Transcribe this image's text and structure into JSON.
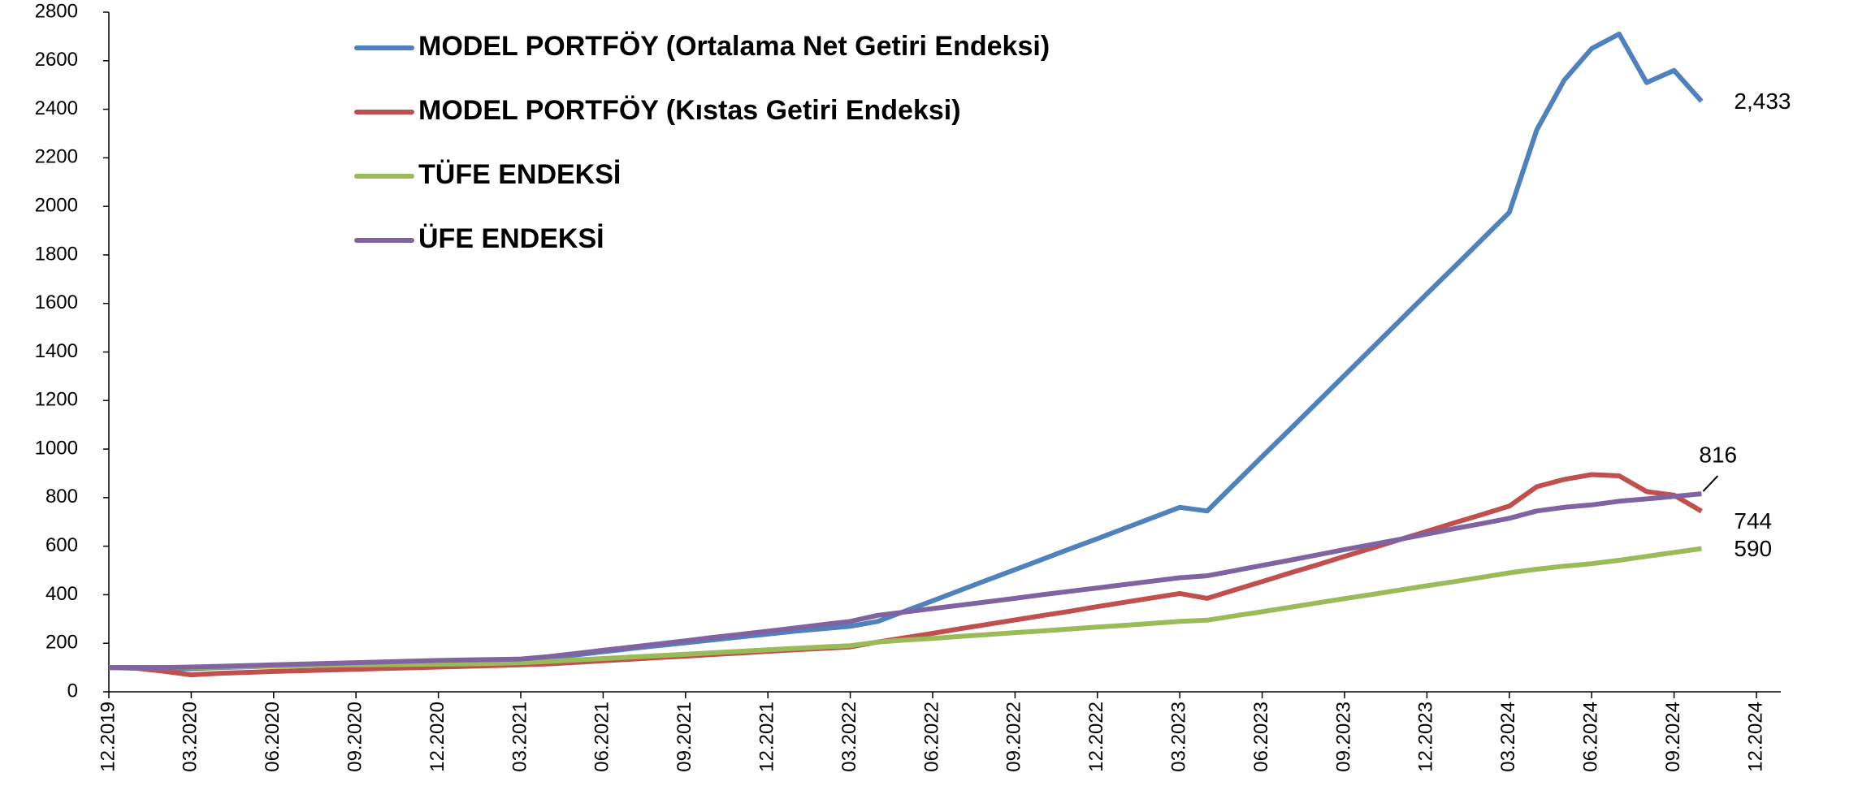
{
  "chart_data": {
    "type": "line",
    "categories": [
      "12.2019",
      null,
      null,
      "03.2020",
      null,
      null,
      "06.2020",
      null,
      null,
      "09.2020",
      null,
      null,
      "12.2020",
      null,
      null,
      "03.2021",
      null,
      null,
      "06.2021",
      null,
      null,
      "09.2021",
      null,
      null,
      "12.2021",
      null,
      null,
      "03.2022",
      null,
      null,
      "06.2022",
      null,
      null,
      "09.2022",
      null,
      null,
      "12.2022",
      null,
      null,
      "03.2023",
      null,
      null,
      "06.2023",
      null,
      null,
      "09.2023",
      null,
      null,
      "12.2023",
      null,
      null,
      "03.2024",
      null,
      null,
      "06.2024",
      null,
      null,
      "09.2024",
      null,
      null,
      "12.2024"
    ],
    "series": [
      {
        "name": "MODEL PORTFÖY (Ortalama Net Getiri Endeksi)",
        "color": "#4f81bd",
        "values": [
          100,
          100,
          95,
          95,
          100,
          103,
          106,
          108,
          110,
          113,
          116,
          118,
          120,
          123,
          126,
          130,
          140,
          152,
          165,
          178,
          190,
          202,
          214,
          226,
          238,
          250,
          260,
          270,
          290,
          333,
          375,
          418,
          461,
          503,
          546,
          589,
          631,
          674,
          717,
          760,
          745,
          857,
          969,
          1080,
          1192,
          1304,
          1416,
          1528,
          1640,
          1751,
          1863,
          1975,
          2315,
          2520,
          2650,
          2710,
          2510,
          2560,
          2433,
          null,
          null
        ],
        "value_labels": [
          null,
          null,
          null,
          null,
          null,
          null,
          null,
          null,
          null,
          null,
          null,
          null,
          null,
          null,
          null,
          null,
          null,
          null,
          null,
          null,
          null,
          null,
          null,
          null,
          null,
          null,
          null,
          null,
          null,
          null,
          null,
          null,
          null,
          null,
          null,
          null,
          null,
          null,
          null,
          null,
          null,
          null,
          null,
          null,
          null,
          null,
          null,
          null,
          null,
          null,
          null,
          null,
          null,
          null,
          null,
          null,
          null,
          null,
          "2,433",
          null,
          null
        ]
      },
      {
        "name": "MODEL PORTFÖY (Kıstas Getiri Endeksi)",
        "color": "#c0504d",
        "values": [
          100,
          97,
          85,
          70,
          76,
          80,
          84,
          87,
          90,
          93,
          96,
          99,
          102,
          105,
          108,
          111,
          115,
          121,
          128,
          134,
          141,
          147,
          154,
          160,
          167,
          173,
          179,
          185,
          205,
          223,
          241,
          260,
          278,
          296,
          314,
          332,
          351,
          369,
          387,
          405,
          385,
          420,
          454,
          489,
          523,
          558,
          592,
          627,
          661,
          696,
          730,
          765,
          845,
          875,
          895,
          890,
          825,
          810,
          744,
          null,
          null
        ]
      },
      {
        "name": "TÜFE ENDEKSİ",
        "color": "#9bbb59",
        "values": [
          100,
          100,
          100,
          100,
          102,
          104,
          106,
          108,
          110,
          111,
          112,
          113,
          114,
          115,
          117,
          120,
          125,
          131,
          137,
          143,
          149,
          155,
          161,
          167,
          173,
          179,
          185,
          190,
          205,
          213,
          220,
          228,
          236,
          244,
          251,
          259,
          267,
          274,
          282,
          290,
          295,
          313,
          330,
          348,
          366,
          384,
          401,
          419,
          437,
          454,
          472,
          490,
          505,
          518,
          528,
          542,
          558,
          574,
          590,
          null,
          null
        ]
      },
      {
        "name": "ÜFE ENDEKSİ",
        "color": "#8064a2",
        "values": [
          100,
          100,
          100,
          102,
          105,
          108,
          111,
          114,
          117,
          120,
          123,
          126,
          129,
          131,
          133,
          135,
          145,
          158,
          171,
          184,
          197,
          210,
          224,
          237,
          250,
          263,
          277,
          290,
          315,
          329,
          343,
          357,
          371,
          385,
          400,
          414,
          428,
          442,
          456,
          470,
          478,
          499,
          521,
          542,
          564,
          586,
          607,
          628,
          650,
          672,
          693,
          715,
          745,
          760,
          770,
          785,
          795,
          805,
          816,
          null,
          null
        ]
      }
    ],
    "ylim": [
      0,
      2800
    ],
    "yticks": [
      0,
      200,
      400,
      600,
      800,
      1000,
      1200,
      1400,
      1600,
      1800,
      2000,
      2200,
      2400,
      2600,
      2800
    ],
    "grid": false,
    "legend_loc": "upper left"
  }
}
